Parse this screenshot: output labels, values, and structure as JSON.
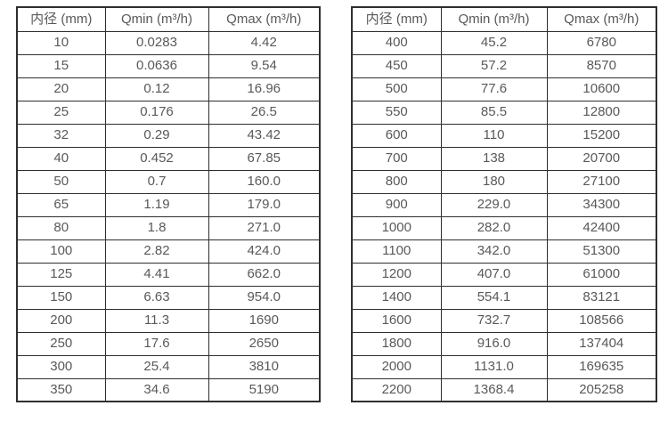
{
  "page": {
    "description_colors": {
      "background": "#ffffff",
      "border": "#2e2e2e",
      "text": "#595959"
    }
  },
  "tables": [
    {
      "name": "flow-spec-table-small-diameters",
      "headers": [
        "内径 (mm)",
        "Qmin (m³/h)",
        "Qmax (m³/h)"
      ],
      "rows": [
        [
          "10",
          "0.0283",
          "4.42"
        ],
        [
          "15",
          "0.0636",
          "9.54"
        ],
        [
          "20",
          "0.12",
          "16.96"
        ],
        [
          "25",
          "0.176",
          "26.5"
        ],
        [
          "32",
          "0.29",
          "43.42"
        ],
        [
          "40",
          "0.452",
          "67.85"
        ],
        [
          "50",
          "0.7",
          "160.0"
        ],
        [
          "65",
          "1.19",
          "179.0"
        ],
        [
          "80",
          "1.8",
          "271.0"
        ],
        [
          "100",
          "2.82",
          "424.0"
        ],
        [
          "125",
          "4.41",
          "662.0"
        ],
        [
          "150",
          "6.63",
          "954.0"
        ],
        [
          "200",
          "11.3",
          "1690"
        ],
        [
          "250",
          "17.6",
          "2650"
        ],
        [
          "300",
          "25.4",
          "3810"
        ],
        [
          "350",
          "34.6",
          "5190"
        ]
      ]
    },
    {
      "name": "flow-spec-table-large-diameters",
      "headers": [
        "内径 (mm)",
        "Qmin (m³/h)",
        "Qmax (m³/h)"
      ],
      "rows": [
        [
          "400",
          "45.2",
          "6780"
        ],
        [
          "450",
          "57.2",
          "8570"
        ],
        [
          "500",
          "77.6",
          "10600"
        ],
        [
          "550",
          "85.5",
          "12800"
        ],
        [
          "600",
          "110",
          "15200"
        ],
        [
          "700",
          "138",
          "20700"
        ],
        [
          "800",
          "180",
          "27100"
        ],
        [
          "900",
          "229.0",
          "34300"
        ],
        [
          "1000",
          "282.0",
          "42400"
        ],
        [
          "1100",
          "342.0",
          "51300"
        ],
        [
          "1200",
          "407.0",
          "61000"
        ],
        [
          "1400",
          "554.1",
          "83121"
        ],
        [
          "1600",
          "732.7",
          "108566"
        ],
        [
          "1800",
          "916.0",
          "137404"
        ],
        [
          "2000",
          "1131.0",
          "169635"
        ],
        [
          "2200",
          "1368.4",
          "205258"
        ]
      ]
    }
  ]
}
